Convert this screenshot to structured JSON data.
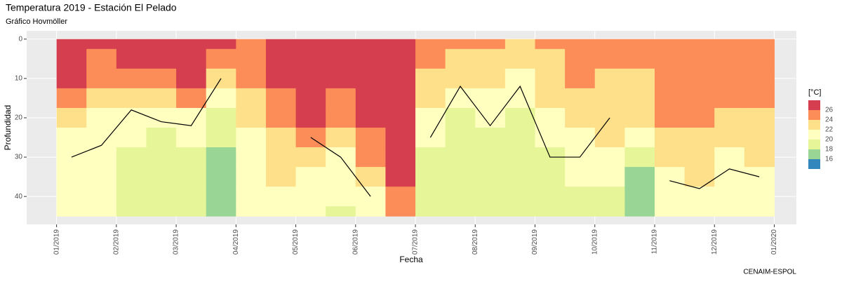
{
  "chart_data": {
    "type": "hovmoller",
    "title": "Temperatura 2019 - Estación El Pelado",
    "subtitle": "Gráfico Hovmöller",
    "xlabel": "Fecha",
    "ylabel": "Profundidad",
    "caption": "CENAIM-ESPOL",
    "legend_title": "[°C]",
    "levels": [
      16,
      18,
      20,
      22,
      24,
      26
    ],
    "colors": [
      "#3288bd",
      "#99d594",
      "#e6f598",
      "#ffffbf",
      "#fee08b",
      "#fc8d59",
      "#d53e4f"
    ],
    "x": [
      0.25,
      0.75,
      1.25,
      1.75,
      2.25,
      2.75,
      3.25,
      3.75,
      4.25,
      4.75,
      5.25,
      5.75,
      6.25,
      6.75,
      7.25,
      7.75,
      8.25,
      8.75,
      9.25,
      9.75,
      10.25,
      10.75,
      11.25,
      11.75
    ],
    "depths": [
      0,
      5,
      10,
      15,
      20,
      25,
      30,
      35,
      40,
      45
    ],
    "values": [
      [
        27,
        27,
        26.5,
        25,
        23,
        21,
        20.5,
        20.5,
        20.5,
        20.5
      ],
      [
        27,
        25,
        24,
        23,
        21.5,
        20.5,
        20,
        20,
        20,
        20
      ],
      [
        27,
        26.5,
        25,
        23.5,
        21.5,
        20.5,
        19.5,
        19,
        19,
        19
      ],
      [
        27,
        26.5,
        25.5,
        23,
        21,
        19.5,
        18.5,
        18.5,
        18.5,
        18.5
      ],
      [
        27,
        26.5,
        26,
        24,
        21.5,
        20,
        19,
        19,
        19,
        19
      ],
      [
        27,
        25,
        23,
        21.5,
        18.5,
        18,
        17.5,
        17.5,
        17.5,
        17.5
      ],
      [
        25.5,
        25,
        24,
        23,
        22,
        21,
        20.5,
        20.5,
        20.5,
        20.5
      ],
      [
        27,
        27,
        26.5,
        25.5,
        24.5,
        23.5,
        22.5,
        22,
        21.5,
        21.5
      ],
      [
        27,
        27,
        27,
        27,
        26.5,
        25.5,
        23,
        21.5,
        20.5,
        20.5
      ],
      [
        27,
        27,
        26.5,
        25.5,
        24,
        22.5,
        21.5,
        20.5,
        20,
        19.5
      ],
      [
        27,
        27,
        27,
        27,
        26.5,
        25.5,
        24.5,
        23,
        21.5,
        20.5
      ],
      [
        27,
        27,
        27,
        27,
        27,
        27,
        26.5,
        26,
        25,
        24
      ],
      [
        25,
        24.5,
        23.5,
        22.5,
        21.5,
        20,
        19,
        18.5,
        18.5,
        18.5
      ],
      [
        24,
        23.5,
        22.5,
        21.5,
        19,
        18.5,
        18,
        18,
        18,
        18
      ],
      [
        24,
        23.5,
        22.5,
        21.5,
        20.5,
        19.5,
        18.5,
        18,
        18,
        18
      ],
      [
        22.5,
        22,
        21.5,
        20.5,
        19.5,
        18.5,
        18,
        18,
        18,
        18
      ],
      [
        24,
        23.5,
        22.5,
        22,
        21,
        20,
        19,
        18.5,
        18.5,
        18.5
      ],
      [
        25.5,
        25,
        24.5,
        23.5,
        22,
        21,
        20.5,
        20,
        19.5,
        18.5
      ],
      [
        24.5,
        24,
        23.5,
        23,
        22.5,
        22,
        21,
        20,
        19.5,
        19.5
      ],
      [
        24,
        24,
        23.5,
        23,
        22.5,
        21.5,
        19,
        17.5,
        16.5,
        16
      ],
      [
        25.5,
        25,
        24.5,
        24.5,
        24,
        23,
        22,
        21,
        20.5,
        20.5
      ],
      [
        25.5,
        25.5,
        25,
        24.5,
        24.5,
        23.5,
        22.5,
        22,
        21,
        20.5
      ],
      [
        25.5,
        25,
        25,
        24.5,
        23.5,
        22.5,
        21.5,
        20.5,
        20.5,
        20.5
      ],
      [
        25.5,
        25,
        25,
        24.5,
        23.5,
        22.5,
        22,
        21.5,
        21,
        21
      ]
    ],
    "contour": [
      30,
      27,
      18,
      21,
      22,
      10,
      null,
      null,
      25,
      30,
      40,
      null,
      25,
      12,
      22,
      12,
      30,
      30,
      20,
      null,
      36,
      38,
      33,
      35
    ],
    "xlim": [
      -0.5,
      12.37
    ],
    "ylim": [
      -2.1,
      47.1
    ],
    "y_reversed": true,
    "xticks": [
      {
        "value": 0,
        "label": "01/2019"
      },
      {
        "value": 1,
        "label": "02/2019"
      },
      {
        "value": 2,
        "label": "03/2019"
      },
      {
        "value": 3,
        "label": "04/2019"
      },
      {
        "value": 4,
        "label": "05/2019"
      },
      {
        "value": 5,
        "label": "06/2019"
      },
      {
        "value": 6,
        "label": "07/2019"
      },
      {
        "value": 7,
        "label": "08/2019"
      },
      {
        "value": 8,
        "label": "09/2019"
      },
      {
        "value": 9,
        "label": "10/2019"
      },
      {
        "value": 10,
        "label": "11/2019"
      },
      {
        "value": 11,
        "label": "12/2019"
      },
      {
        "value": 12,
        "label": "01/2020"
      }
    ],
    "yticks": [
      0,
      10,
      20,
      30,
      40
    ],
    "grid": true
  }
}
